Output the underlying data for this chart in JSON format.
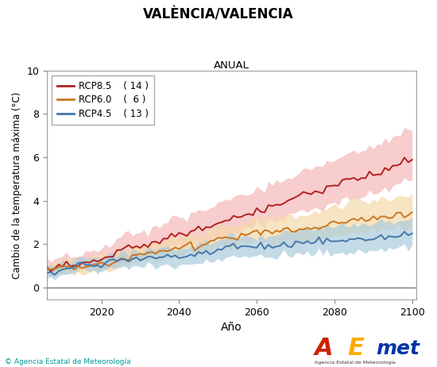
{
  "title": "VALÈNCIA/VALENCIA",
  "subtitle": "ANUAL",
  "xlabel": "Año",
  "ylabel": "Cambio de la temperatura máxima (°C)",
  "xlim": [
    2006,
    2101
  ],
  "ylim": [
    -0.55,
    10
  ],
  "yticks": [
    0,
    2,
    4,
    6,
    8,
    10
  ],
  "xticks": [
    2020,
    2040,
    2060,
    2080,
    2100
  ],
  "legend_entries": [
    {
      "label": "RCP8.5",
      "count": "( 14 )",
      "color": "#b22222"
    },
    {
      "label": "RCP6.0",
      "count": "(  6 )",
      "color": "#cc7722"
    },
    {
      "label": "RCP4.5",
      "count": "( 13 )",
      "color": "#4477aa"
    }
  ],
  "rcp85_color": "#b22222",
  "rcp85_fill": "#f4b8b8",
  "rcp60_color": "#cc7722",
  "rcp60_fill": "#f5d9a8",
  "rcp45_color": "#4477aa",
  "rcp45_fill": "#aaccdd",
  "background_color": "#ffffff",
  "zero_line_color": "#666666",
  "footer_text": "© Agencia Estatal de Meteorología",
  "footer_color": "#009999",
  "seed": 17
}
